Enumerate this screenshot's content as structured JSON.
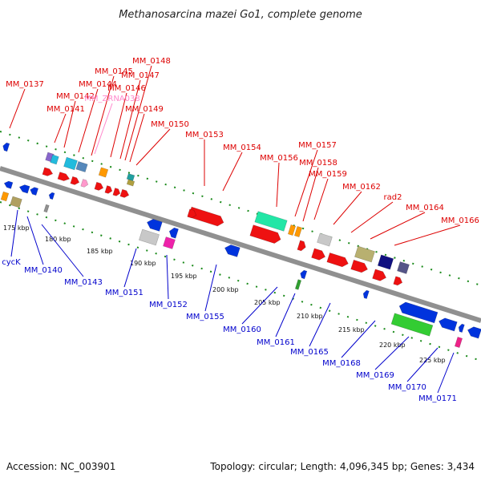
{
  "title": "Methanosarcina mazei Go1, complete genome",
  "footer": {
    "accession": "Accession: NC_003901",
    "summary": "Topology: circular; Length: 4,096,345 bp; Genes: 3,434"
  },
  "colors": {
    "forward_label": "#dd0000",
    "reverse_label": "#0000cc",
    "rna_label": "#ff88cc"
  },
  "forward_labels": [
    "MM_0137",
    "MM_0141",
    "MM_0142",
    "MM_0144",
    "MM_0145",
    "MM_ZRNA038",
    "MM_0146",
    "MM_0147",
    "MM_0148",
    "MM_0149",
    "MM_0150",
    "MM_0153",
    "MM_0154",
    "MM_0156",
    "MM_0157",
    "MM_0158",
    "MM_0159",
    "MM_0162",
    "rad2",
    "MM_0164",
    "MM_0166"
  ],
  "reverse_labels": [
    "cycK",
    "MM_0140",
    "MM_0143",
    "MM_0151",
    "MM_0152",
    "MM_0155",
    "MM_0160",
    "MM_0161",
    "MM_0165",
    "MM_0168",
    "MM_0169",
    "MM_0170",
    "MM_0171"
  ],
  "kbp_ticks": [
    "175 kbp",
    "180 kbp",
    "185 kbp",
    "190 kbp",
    "195 kbp",
    "200 kbp",
    "205 kbp",
    "210 kbp",
    "215 kbp",
    "220 kbp",
    "225 kbp"
  ]
}
